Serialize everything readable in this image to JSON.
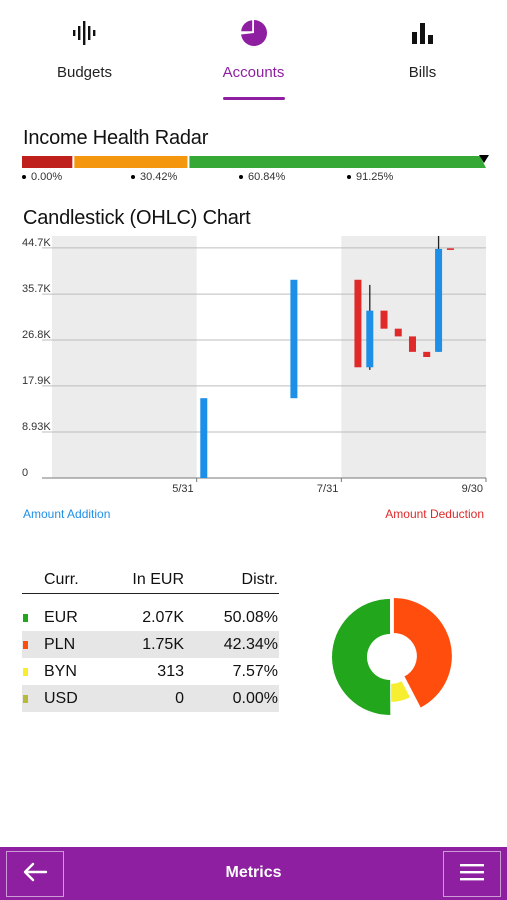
{
  "tabs": [
    {
      "label": "Budgets",
      "icon": "waveform-icon",
      "active": false
    },
    {
      "label": "Accounts",
      "icon": "pie-chart-icon",
      "active": true
    },
    {
      "label": "Bills",
      "icon": "bar-chart-icon",
      "active": false
    }
  ],
  "health_radar": {
    "title": "Income Health Radar",
    "segments": [
      {
        "color": "#c0201c",
        "from": 0,
        "to": 0.1085
      },
      {
        "color": "#f5960f",
        "from": 0.1085,
        "to": 0.3565
      },
      {
        "color": "#36a836",
        "from": 0.3565,
        "to": 1.0
      }
    ],
    "marker_value": "91.25%",
    "labels": [
      "0.00%",
      "30.42%",
      "60.84%",
      "91.25%"
    ]
  },
  "candlestick": {
    "title": "Candlestick (OHLC) Chart",
    "legend_addition": "Amount Addition",
    "legend_deduction": "Amount Deduction",
    "addition_color": "#1e8fe6",
    "deduction_color": "#e02a2a"
  },
  "chart_data": {
    "type": "candlestick",
    "y_ticks": [
      "0",
      "8.93K",
      "17.9K",
      "26.8K",
      "35.7K",
      "44.7K"
    ],
    "y_tick_values": [
      0,
      8930,
      17900,
      26800,
      35700,
      44700
    ],
    "ylim": [
      0,
      47000
    ],
    "x_ticks": [
      "5/31",
      "7/31",
      "9/30"
    ],
    "x_tick_days": [
      0,
      61,
      122
    ],
    "shaded_bands": [
      [
        -61,
        0
      ],
      [
        61,
        122
      ]
    ],
    "xlim": [
      -61,
      122
    ],
    "candles": [
      {
        "day": 3,
        "open": 0,
        "high": 15500,
        "low": 0,
        "close": 15500,
        "type": "addition"
      },
      {
        "day": 41,
        "open": 15500,
        "high": 38500,
        "low": 15500,
        "close": 38500,
        "type": "addition"
      },
      {
        "day": 68,
        "open": 38500,
        "high": 38500,
        "low": 21500,
        "close": 21500,
        "type": "deduction"
      },
      {
        "day": 73,
        "open": 21500,
        "high": 37500,
        "low": 21000,
        "close": 32500,
        "type": "addition"
      },
      {
        "day": 79,
        "open": 32500,
        "high": 32500,
        "low": 29000,
        "close": 29000,
        "type": "deduction"
      },
      {
        "day": 85,
        "open": 29000,
        "high": 29000,
        "low": 27500,
        "close": 27500,
        "type": "deduction"
      },
      {
        "day": 91,
        "open": 27500,
        "high": 27500,
        "low": 24500,
        "close": 24500,
        "type": "deduction"
      },
      {
        "day": 97,
        "open": 24500,
        "high": 24500,
        "low": 23500,
        "close": 23500,
        "type": "deduction"
      },
      {
        "day": 102,
        "open": 24500,
        "high": 47000,
        "low": 24500,
        "close": 44500,
        "type": "addition"
      },
      {
        "day": 107,
        "open": 44600,
        "high": 44600,
        "low": 44300,
        "close": 44300,
        "type": "deduction"
      }
    ]
  },
  "currency_table": {
    "headers": {
      "currency": "Curr.",
      "in_eur": "In EUR",
      "distribution": "Distr."
    },
    "rows": [
      {
        "currency": "EUR",
        "in_eur": "2.07K",
        "distribution": "50.08%",
        "color": "#22a61c"
      },
      {
        "currency": "PLN",
        "in_eur": "1.75K",
        "distribution": "42.34%",
        "color": "#ff4d0d"
      },
      {
        "currency": "BYN",
        "in_eur": "313",
        "distribution": "7.57%",
        "color": "#f7ee2f"
      },
      {
        "currency": "USD",
        "in_eur": "0",
        "distribution": "0.00%",
        "color": "#b7ba38"
      }
    ]
  },
  "donut_data": {
    "type": "pie",
    "slices": [
      {
        "label": "EUR",
        "value": 50.08,
        "color": "#22a61c"
      },
      {
        "label": "PLN",
        "value": 42.34,
        "color": "#ff4d0d"
      },
      {
        "label": "BYN",
        "value": 7.57,
        "color": "#f7ee2f"
      },
      {
        "label": "USD",
        "value": 0.0,
        "color": "#b7ba38"
      }
    ]
  },
  "bottom_bar": {
    "title": "Metrics",
    "back_icon": "arrow-left-icon",
    "menu_icon": "hamburger-menu-icon",
    "background": "#8e1fa0"
  }
}
